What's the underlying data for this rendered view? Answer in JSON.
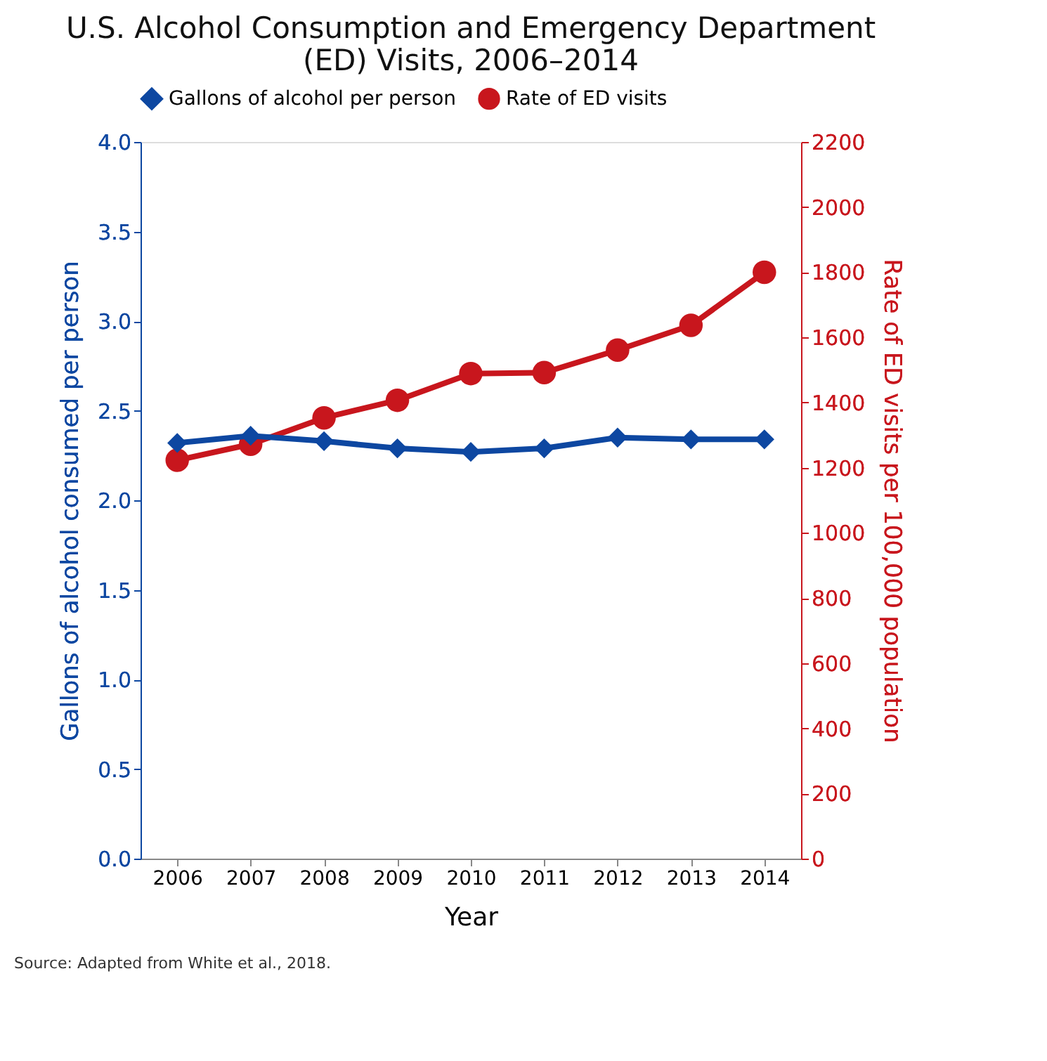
{
  "chart_data": {
    "type": "line",
    "title": "U.S. Alcohol Consumption and Emergency Department\n(ED) Visits, 2006–2014",
    "xlabel": "Year",
    "ylabel": "Gallons of alcohol consumed per person",
    "y2label": "Rate of ED visits per 100,000 population",
    "categories": [
      "2006",
      "2007",
      "2008",
      "2009",
      "2010",
      "2011",
      "2012",
      "2013",
      "2014"
    ],
    "series": [
      {
        "name": "Gallons of alcohol per person",
        "color": "#0d47a1",
        "marker": "diamond",
        "values": [
          2.32,
          2.36,
          2.33,
          2.29,
          2.27,
          2.29,
          2.35,
          2.34,
          2.34
        ]
      },
      {
        "name": "Rate of ED visits",
        "color": "#c8161d",
        "marker": "circle",
        "axis": "y2",
        "values": [
          1223,
          1272,
          1353,
          1407,
          1489,
          1492,
          1561,
          1637,
          1800
        ]
      }
    ],
    "ylim": [
      0,
      4
    ],
    "yticks": [
      {
        "value": 0,
        "label": "0.0"
      },
      {
        "value": 0.5,
        "label": "0.5"
      },
      {
        "value": 1,
        "label": "1.0"
      },
      {
        "value": 1.5,
        "label": "1.5"
      },
      {
        "value": 2,
        "label": "2.0"
      },
      {
        "value": 2.5,
        "label": "2.5"
      },
      {
        "value": 3,
        "label": "3.0"
      },
      {
        "value": 3.5,
        "label": "3.5"
      },
      {
        "value": 4,
        "label": "4.0"
      }
    ],
    "y2lim": [
      0,
      2200
    ],
    "y2ticks": [
      0,
      200,
      400,
      600,
      800,
      1000,
      1200,
      1400,
      1600,
      1800,
      2000,
      2200
    ],
    "grid": false,
    "legend": "top",
    "line_style": "solid",
    "annotations": [
      "Source: Adapted from White et al., 2018."
    ]
  }
}
